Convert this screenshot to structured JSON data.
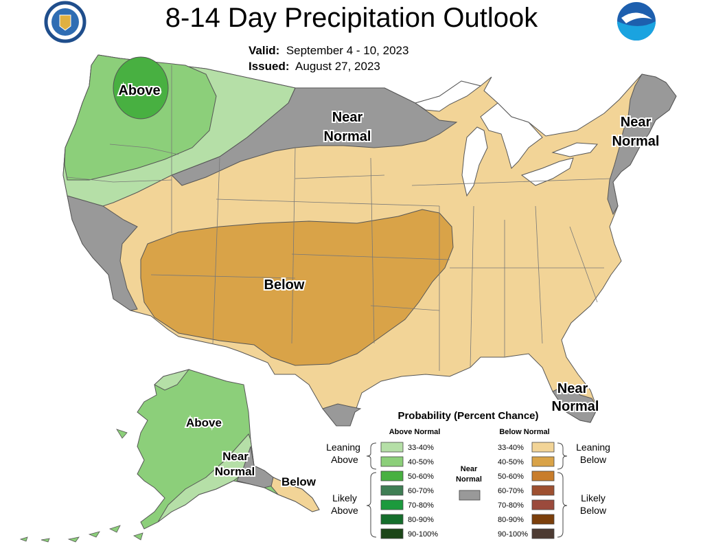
{
  "title": "8-14 Day Precipitation Outlook",
  "valid_label": "Valid:",
  "valid_value": "September 4 - 10, 2023",
  "issued_label": "Issued:",
  "issued_value": "August 27, 2023",
  "logos": {
    "left": "doc-seal-icon",
    "right": "noaa-logo-icon"
  },
  "colors": {
    "above_33_40": "#b5dfa7",
    "above_40_50": "#8ccf7a",
    "above_50_60": "#48b041",
    "above_60_70": "#3f7e54",
    "above_70_80": "#1c9a3d",
    "above_80_90": "#156e2c",
    "above_90_100": "#1c4618",
    "below_33_40": "#f2d497",
    "below_40_50": "#d9a348",
    "below_50_60": "#c87d2c",
    "below_60_70": "#9e5030",
    "below_70_80": "#9b4a3c",
    "below_80_90": "#7b3f0b",
    "below_90_100": "#4d3b32",
    "near_normal": "#999999"
  },
  "map_labels": {
    "above_nw": "Above",
    "near_normal_north_1": "Near",
    "near_normal_north_2": "Normal",
    "near_normal_ne_1": "Near",
    "near_normal_ne_2": "Normal",
    "below_center": "Below",
    "near_normal_fl_1": "Near",
    "near_normal_fl_2": "Normal",
    "alaska_above": "Above",
    "alaska_near_1": "Near",
    "alaska_near_2": "Normal",
    "alaska_below": "Below"
  },
  "legend": {
    "title": "Probability (Percent Chance)",
    "above_header": "Above Normal",
    "below_header": "Below Normal",
    "near_header_1": "Near",
    "near_header_2": "Normal",
    "leaning_above_1": "Leaning",
    "leaning_above_2": "Above",
    "likely_above_1": "Likely",
    "likely_above_2": "Above",
    "leaning_below_1": "Leaning",
    "leaning_below_2": "Below",
    "likely_below_1": "Likely",
    "likely_below_2": "Below",
    "above_rows": [
      "33-40%",
      "40-50%",
      "50-60%",
      "60-70%",
      "70-80%",
      "80-90%",
      "90-100%"
    ],
    "below_rows": [
      "33-40%",
      "40-50%",
      "50-60%",
      "60-70%",
      "70-80%",
      "80-90%",
      "90-100%"
    ]
  }
}
